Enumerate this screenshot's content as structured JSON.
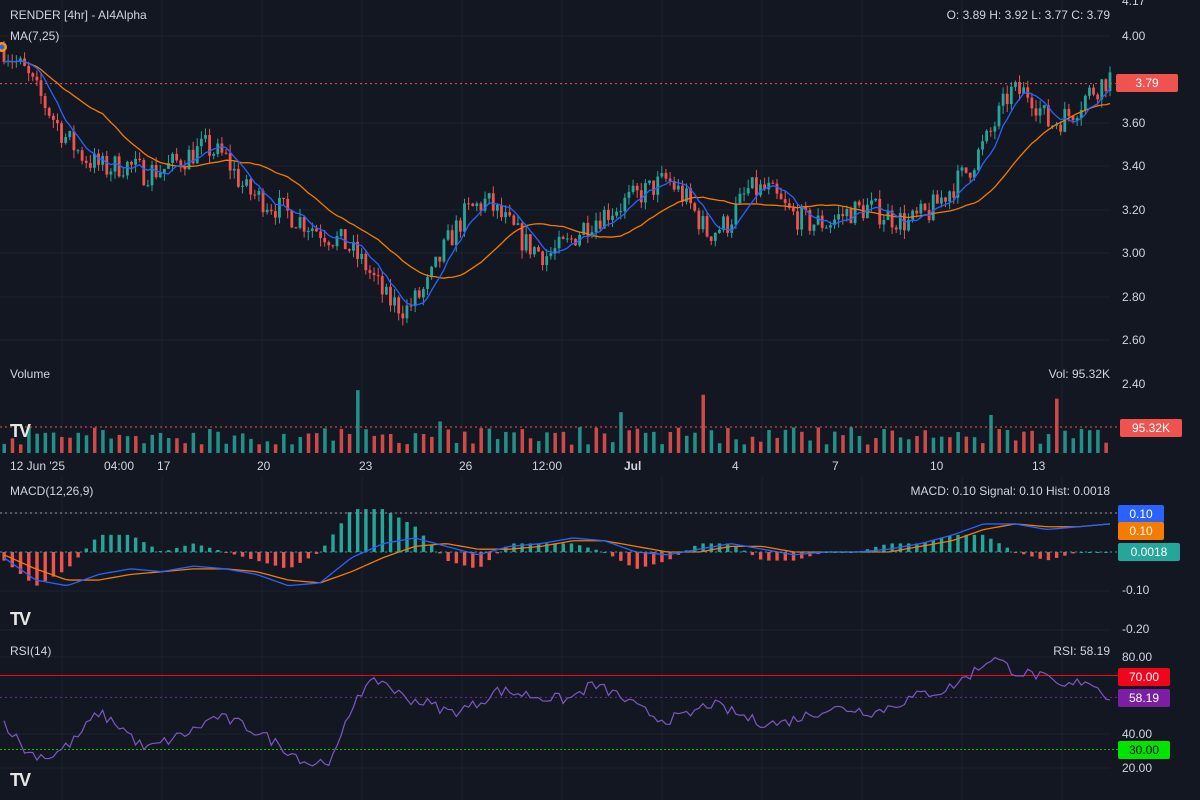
{
  "header": {
    "title": "RENDER [4hr] - AI4Alpha",
    "ma_label": "MA(7,25)",
    "ohlc": "O: 3.89 H: 3.92 L: 3.77 C: 3.79"
  },
  "price_axis": {
    "ticks": [
      "4.17",
      "4.00",
      "3.80",
      "3.60",
      "3.40",
      "3.20",
      "3.00",
      "2.80",
      "2.60",
      "2.40"
    ],
    "last_tag": "3.79"
  },
  "volume": {
    "label": "Volume",
    "value_text": "Vol: 95.32K",
    "tag": "95.32K"
  },
  "time_axis": [
    "12 Jun '25",
    "04:00",
    "17",
    "20",
    "23",
    "26",
    "12:00",
    "Jul",
    "4",
    "7",
    "10",
    "13"
  ],
  "macd": {
    "label": "MACD(12,26,9)",
    "value_text": "MACD: 0.10 Signal: 0.10 Hist: 0.0018",
    "ticks": [
      "-0.10",
      "-0.20"
    ],
    "tag_macd": "0.10",
    "tag_signal": "0.10",
    "tag_hist": "0.0018"
  },
  "rsi": {
    "label": "RSI(14)",
    "value_text": "RSI: 58.19",
    "ticks": [
      "80.00",
      "40.00",
      "20.00"
    ],
    "tag_70": "70.00",
    "tag_value": "58.19",
    "tag_30": "30.00"
  },
  "colors": {
    "bg": "#131722",
    "up": "#26a69a",
    "down": "#ef5350",
    "ma_fast": "#2962ff",
    "ma_slow": "#f57c00",
    "rsi": "#7e57c2"
  },
  "chart_data": [
    {
      "type": "line",
      "title": "RENDER [4hr] - AI4Alpha",
      "series": [
        {
          "name": "MA(7,25)",
          "values": [
            3.95,
            3.85,
            3.7,
            3.55,
            3.45,
            3.4,
            3.42,
            3.38,
            3.4,
            3.45,
            3.5,
            3.45,
            3.3,
            3.25,
            3.2,
            3.15,
            3.1,
            3.05,
            2.95,
            2.8,
            2.75,
            2.85,
            3.05,
            3.2,
            3.25,
            3.15,
            3.05,
            3.0,
            3.05,
            3.15,
            3.2,
            3.25,
            3.3,
            3.35,
            3.25,
            3.1,
            3.15,
            3.3,
            3.3,
            3.2,
            3.15,
            3.15,
            3.2,
            3.22,
            3.18,
            3.15,
            3.2,
            3.3,
            3.4,
            3.55,
            3.75,
            3.75,
            3.6,
            3.65,
            3.75,
            3.82
          ]
        }
      ],
      "ylim": [
        2.4,
        4.17
      ]
    },
    {
      "type": "bar",
      "title": "Volume",
      "values_text": "Vol: 95.32K"
    },
    {
      "type": "line",
      "title": "MACD(12,26,9)",
      "series": [
        {
          "name": "MACD",
          "values": [
            0.1
          ]
        },
        {
          "name": "Signal",
          "values": [
            0.1
          ]
        },
        {
          "name": "Hist",
          "values": [
            0.0018
          ]
        }
      ],
      "ylim": [
        -0.2,
        0.12
      ]
    },
    {
      "type": "line",
      "title": "RSI(14)",
      "series": [
        {
          "name": "RSI",
          "values": [
            45,
            28,
            26,
            35,
            50,
            42,
            30,
            35,
            40,
            48,
            44,
            38,
            30,
            22,
            25,
            60,
            68,
            58,
            55,
            50,
            54,
            62,
            60,
            58,
            57,
            65,
            60,
            52,
            46,
            48,
            55,
            50,
            45,
            44,
            48,
            52,
            52,
            50,
            55,
            60,
            62,
            70,
            80,
            72,
            70,
            63,
            68,
            58
          ]
        }
      ],
      "ylim": [
        20,
        85
      ]
    }
  ]
}
